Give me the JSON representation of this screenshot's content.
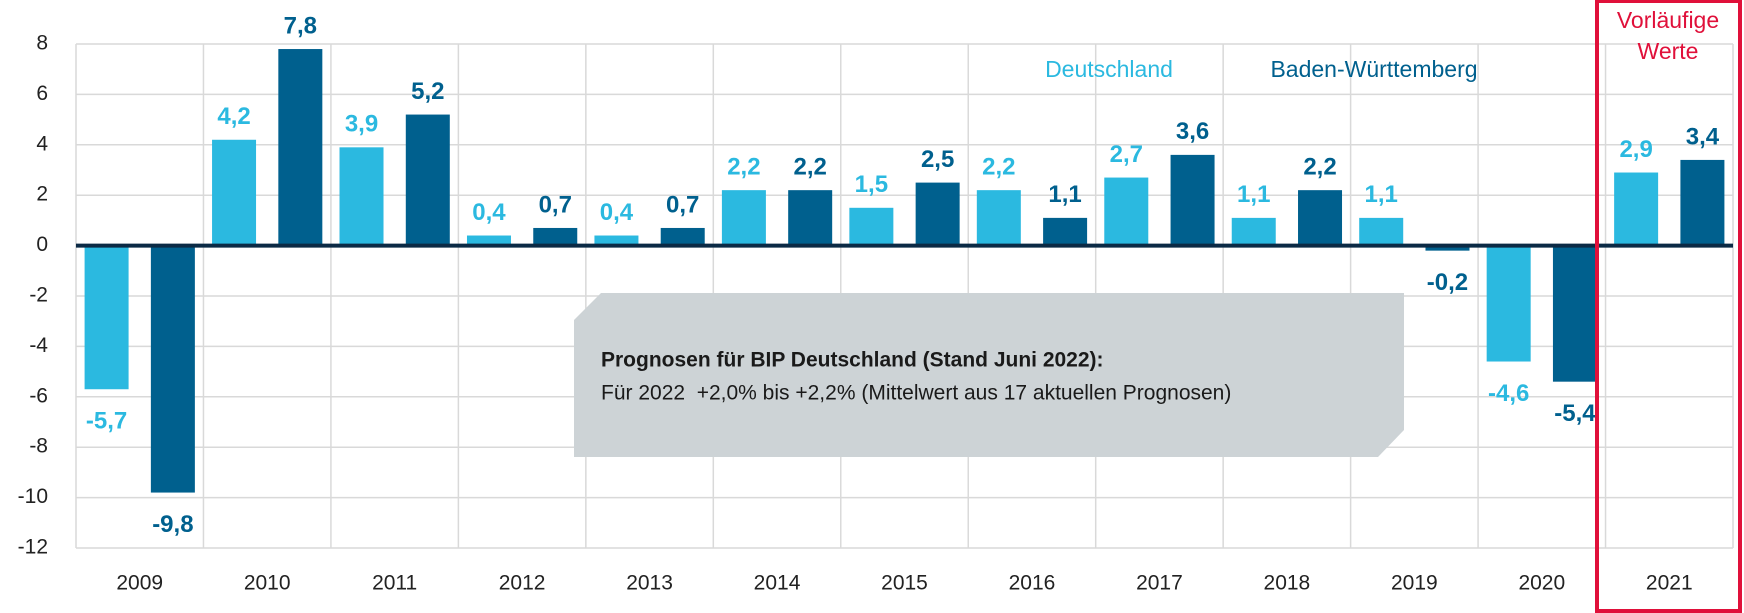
{
  "chart_data": {
    "type": "bar",
    "categories": [
      "2009",
      "2010",
      "2011",
      "2012",
      "2013",
      "2014",
      "2015",
      "2016",
      "2017",
      "2018",
      "2019",
      "2020",
      "2021"
    ],
    "series": [
      {
        "name": "Deutschland",
        "color": "#2bb9e0",
        "values": [
          -5.7,
          4.2,
          3.9,
          0.4,
          0.4,
          2.2,
          1.5,
          2.2,
          2.7,
          1.1,
          1.1,
          -4.6,
          2.9
        ],
        "value_labels": [
          "-5,7",
          "4,2",
          "3,9",
          "0,4",
          "0,4",
          "2,2",
          "1,5",
          "2,2",
          "2,7",
          "1,1",
          "1,1",
          "-4,6",
          "2,9"
        ]
      },
      {
        "name": "Baden-Württemberg",
        "color": "#00608e",
        "values": [
          -9.8,
          7.8,
          5.2,
          0.7,
          0.7,
          2.2,
          2.5,
          1.1,
          3.6,
          2.2,
          -0.2,
          -5.4,
          3.4
        ],
        "value_labels": [
          "-9,8",
          "7,8",
          "5,2",
          "0,7",
          "0,7",
          "2,2",
          "2,5",
          "1,1",
          "3,6",
          "2,2",
          "-0,2",
          "-5,4",
          "3,4"
        ]
      }
    ],
    "ylim": [
      -12,
      8
    ],
    "yticks": [
      -12,
      -10,
      -8,
      -6,
      -4,
      -2,
      0,
      2,
      4,
      6,
      8
    ],
    "grid": true,
    "annotation": {
      "title": "Prognosen für BIP Deutschland (Stand Juni 2022):",
      "text": "Für 2022  +2,0% bis +2,2% (Mittelwert aus 17 aktuellen Prognosen)"
    },
    "highlight_label_lines": [
      "Vorläufige",
      "Werte"
    ]
  }
}
